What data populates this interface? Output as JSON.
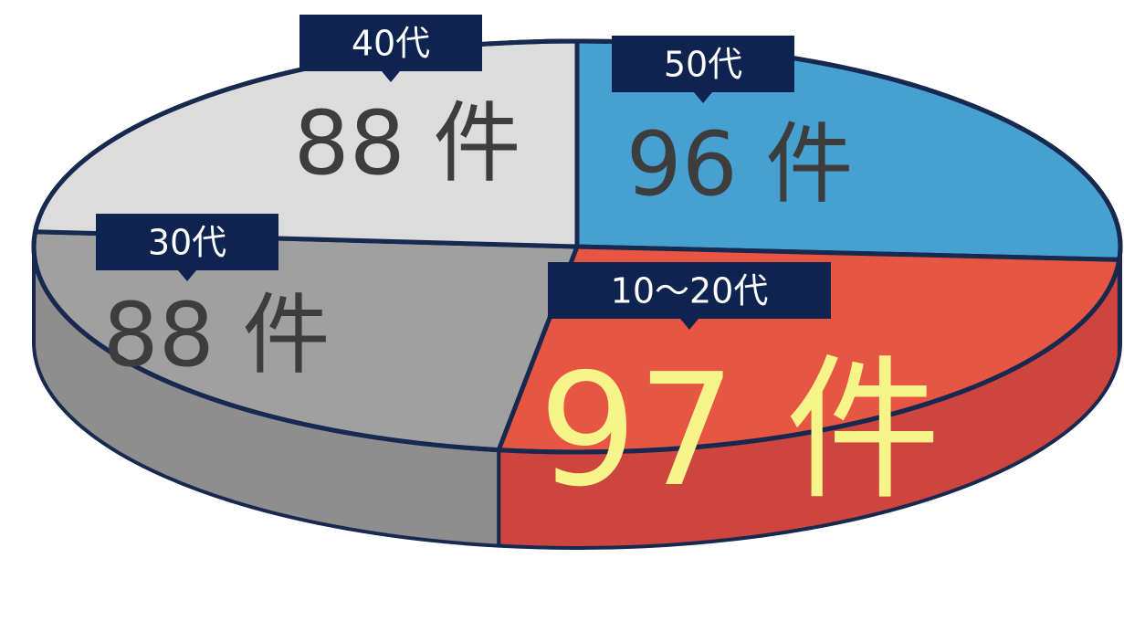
{
  "chart_data": {
    "type": "pie",
    "style": "3d",
    "slices": [
      {
        "label": "50代",
        "value": 96,
        "display": "96 件",
        "color": "#46A1D2",
        "side_color": "#3C8BB8",
        "text_color": "#3D3D3D"
      },
      {
        "label": "10〜20代",
        "value": 97,
        "display": "97 件",
        "color": "#E75543",
        "side_color": "#CE4540",
        "text_color": "#F7F48A"
      },
      {
        "label": "30代",
        "value": 88,
        "display": "88 件",
        "color": "#A0A0A0",
        "side_color": "#8E8E8E",
        "text_color": "#3D3D3D"
      },
      {
        "label": "40代",
        "value": 88,
        "display": "88 件",
        "color": "#DCDCDC",
        "side_color": "#C8C8C8",
        "text_color": "#3D3D3D"
      }
    ],
    "outline_color": "#17294F",
    "tag_color": "#0E2350"
  }
}
